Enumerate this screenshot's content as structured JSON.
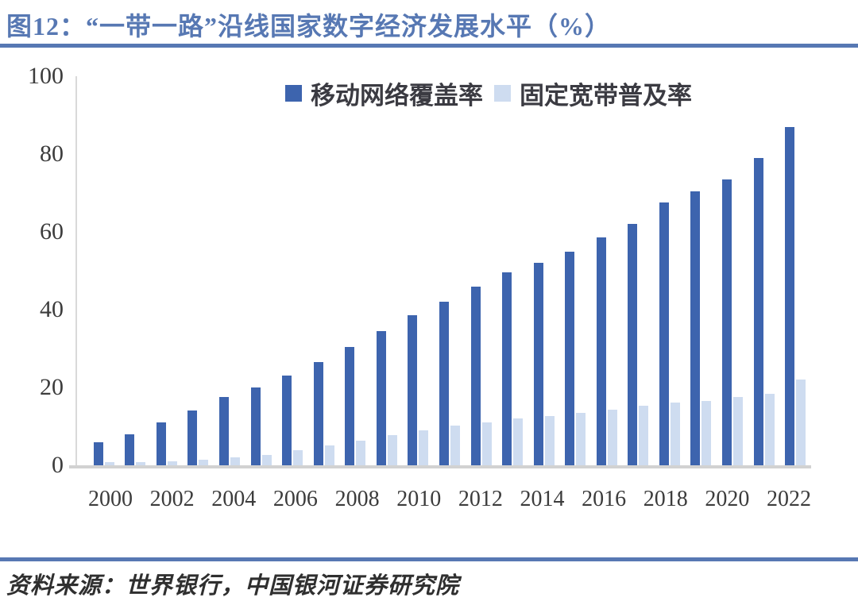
{
  "figure": {
    "title": "图12：“一带一路”沿线国家数字经济发展水平（%）",
    "source_note": "资料来源：世界银行，中国银河证券研究院"
  },
  "colors": {
    "accent_blue": "#5778B3",
    "mobile_bar": "#3D64AE",
    "broadband_bar": "#CEDCF0",
    "axis_line": "#D9D9D9",
    "axis_text": "#3C3C3C",
    "legend_text": "#3B3B42"
  },
  "chart_data": {
    "type": "bar",
    "title": "“一带一路”沿线国家数字经济发展水平（%）",
    "categories": [
      2000,
      2001,
      2002,
      2003,
      2004,
      2005,
      2006,
      2007,
      2008,
      2009,
      2010,
      2011,
      2012,
      2013,
      2014,
      2015,
      2016,
      2017,
      2018,
      2019,
      2020,
      2021,
      2022
    ],
    "series": [
      {
        "name": "移动网络覆盖率",
        "color": "#3D64AE",
        "values": [
          6,
          8,
          11,
          14,
          17.5,
          20,
          23,
          26.5,
          30.5,
          34.5,
          38.5,
          42,
          46,
          49.5,
          52,
          55,
          58.5,
          62,
          67.5,
          70.5,
          73.5,
          79,
          87
        ]
      },
      {
        "name": "固定宽带普及率",
        "color": "#CEDCF0",
        "values": [
          0.8,
          0.8,
          1.1,
          1.4,
          2,
          2.6,
          3.8,
          5.2,
          6.3,
          7.7,
          9,
          10.3,
          11.1,
          12,
          12.7,
          13.5,
          14.2,
          15.3,
          16.1,
          16.5,
          17.5,
          18.4,
          22
        ]
      }
    ],
    "ylim": [
      0,
      100
    ],
    "yticks": [
      0,
      20,
      40,
      60,
      80,
      100
    ],
    "x_tick_interval": 2,
    "grid": false,
    "legend_position": "top-center"
  }
}
